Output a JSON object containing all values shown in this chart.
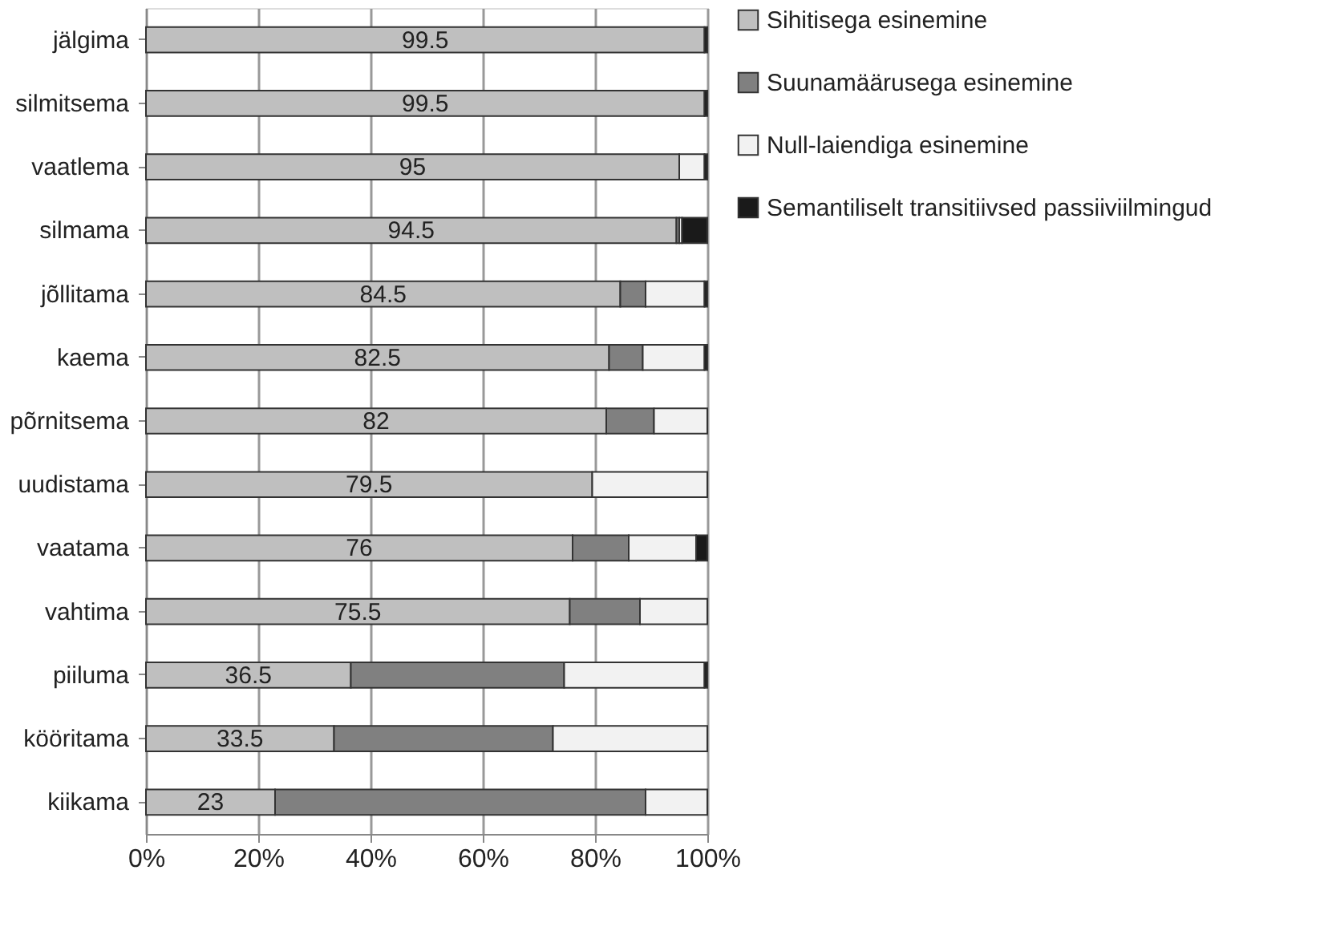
{
  "chart_data": {
    "type": "bar",
    "orientation": "horizontal",
    "stacked": true,
    "categories": [
      "jälgima",
      "silmitsema",
      "vaatlema",
      "silmama",
      "jõllitama",
      "kaema",
      "põrnitsema",
      "uudistama",
      "vaatama",
      "vahtima",
      "piiluma",
      "kööritama",
      "kiikama"
    ],
    "series": [
      {
        "name": "Sihitisega esinemine",
        "color": "#bfbfbf",
        "values": [
          99.5,
          99.5,
          95,
          94.5,
          84.5,
          82.5,
          82,
          79.5,
          76,
          75.5,
          36.5,
          33.5,
          23
        ],
        "value_labels": [
          "99.5",
          "99.5",
          "95",
          "94.5",
          "84.5",
          "82.5",
          "82",
          "79.5",
          "76",
          "75.5",
          "36.5",
          "33.5",
          "23"
        ]
      },
      {
        "name": "Suunamäärusega esinemine",
        "color": "#808080",
        "values": [
          0,
          0,
          0,
          0.5,
          4.5,
          6,
          8.5,
          0,
          10,
          12.5,
          38,
          39,
          66
        ]
      },
      {
        "name": "Null-laiendiga esinemine",
        "color": "#f2f2f2",
        "values": [
          0,
          0,
          4.5,
          0.5,
          10.5,
          11,
          9.5,
          20.5,
          12,
          12,
          25,
          27.5,
          11
        ]
      },
      {
        "name": "Semantiliselt transitiivsed passiiviilmingud",
        "color": "#1a1a1a",
        "values": [
          0.5,
          0.5,
          0.5,
          4.5,
          0.5,
          0.5,
          0,
          0,
          2,
          0,
          0.5,
          0,
          0
        ]
      }
    ],
    "xlim": [
      0,
      100
    ],
    "xticks": [
      {
        "value": 0,
        "label": "0%"
      },
      {
        "value": 20,
        "label": "20%"
      },
      {
        "value": 40,
        "label": "40%"
      },
      {
        "value": 60,
        "label": "60%"
      },
      {
        "value": 80,
        "label": "80%"
      },
      {
        "value": 100,
        "label": "100%"
      }
    ],
    "grid": "x",
    "legend": "right"
  }
}
